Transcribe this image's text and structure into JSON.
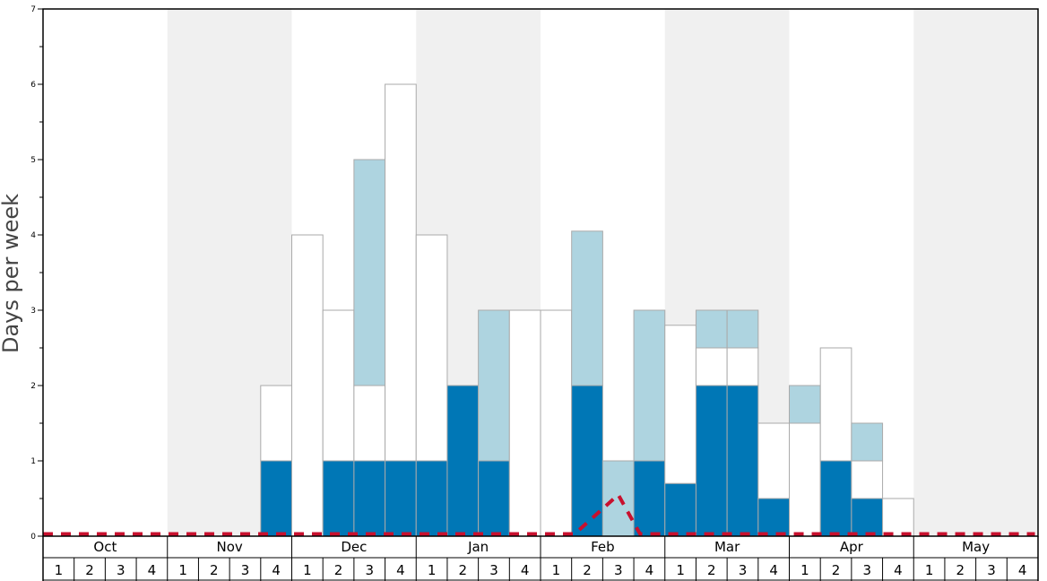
{
  "chart_data": {
    "type": "bar",
    "stacked": true,
    "ylabel": "Days per week",
    "ylim": [
      0,
      7
    ],
    "yticks": [
      "0",
      "1",
      "2",
      "3",
      "4",
      "5",
      "6",
      "7"
    ],
    "months": [
      "Oct",
      "Nov",
      "Dec",
      "Jan",
      "Feb",
      "Mar",
      "Apr",
      "May"
    ],
    "week_labels": [
      "1",
      "2",
      "3",
      "4"
    ],
    "shaded_months": [
      "Nov",
      "Jan",
      "Mar",
      "May"
    ],
    "grid": false,
    "legend": "none",
    "series": [
      {
        "color": "#0077b6",
        "values": [
          0,
          0,
          0,
          0,
          0,
          0,
          0,
          1,
          0,
          1,
          1,
          1,
          1,
          2,
          1,
          0,
          0,
          2,
          0,
          1,
          0.7,
          2,
          2,
          0.5,
          0,
          1,
          0.5,
          0,
          0,
          0,
          0,
          0
        ]
      },
      {
        "color": "#ffffff",
        "values": [
          0,
          0,
          0,
          0,
          0,
          0,
          0,
          1,
          4,
          2,
          1,
          5,
          3,
          0,
          0,
          3,
          3,
          0,
          0,
          0,
          2.1,
          0.5,
          0.5,
          1,
          1.5,
          1.5,
          0.5,
          0.5,
          0,
          0,
          0,
          0
        ]
      },
      {
        "color": "#aed4e0",
        "values": [
          0,
          0,
          0,
          0,
          0,
          0,
          0,
          0,
          0,
          0,
          3,
          0,
          0,
          0,
          2,
          0,
          0,
          2.05,
          1,
          2,
          0,
          0.5,
          0.5,
          0,
          0.5,
          0,
          0.5,
          0,
          0,
          0,
          0,
          0
        ]
      }
    ],
    "reference_line": {
      "color": "#c8102e",
      "style": "dashed",
      "x_week_index": [
        0,
        17.1,
        18.5,
        19.2,
        31.9
      ],
      "y": [
        0.03,
        0.03,
        0.55,
        0.03,
        0.03
      ]
    }
  }
}
